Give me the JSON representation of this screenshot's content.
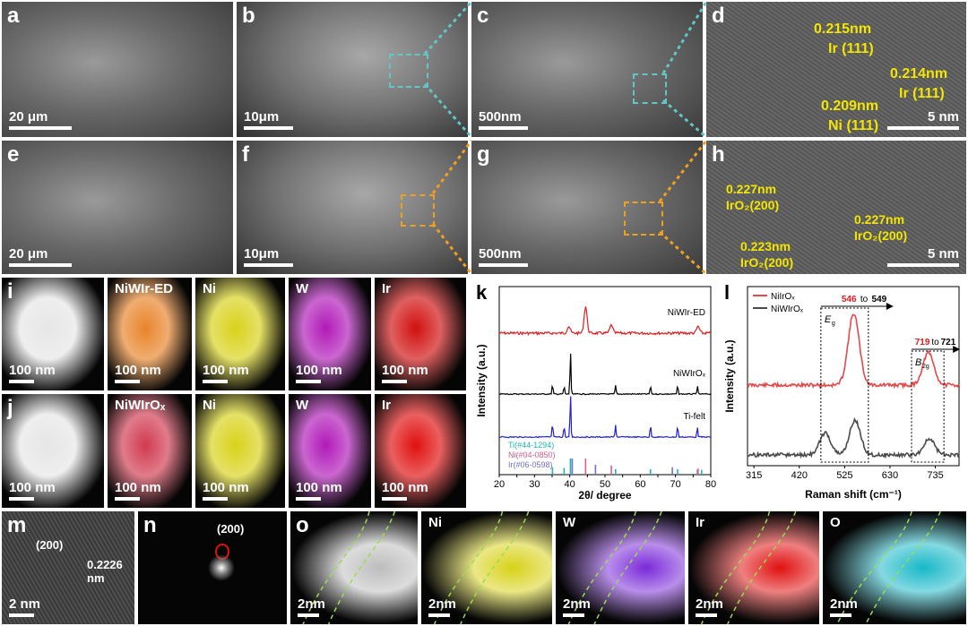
{
  "panels": {
    "a": {
      "letter": "a",
      "scalebar": "20 μm"
    },
    "b": {
      "letter": "b",
      "scalebar": "10μm"
    },
    "c": {
      "letter": "c",
      "scalebar": "500nm"
    },
    "d": {
      "letter": "d",
      "scalebar": "5 nm",
      "annotations": [
        "0.215nm",
        "Ir (111)",
        "0.214nm",
        "Ir (111)",
        "0.209nm",
        "Ni (111)"
      ]
    },
    "e": {
      "letter": "e",
      "scalebar": "20 μm"
    },
    "f": {
      "letter": "f",
      "scalebar": "10μm"
    },
    "g": {
      "letter": "g",
      "scalebar": "500nm"
    },
    "h": {
      "letter": "h",
      "scalebar": "5 nm",
      "annotations": [
        "0.227nm",
        "IrO₂(200)",
        "0.227nm",
        "IrO₂(200)",
        "0.223nm",
        "IrO₂(200)"
      ]
    },
    "i": {
      "letter": "i",
      "tiles": [
        {
          "title": "",
          "scalebar": "100 nm",
          "color": "#e6e6e6"
        },
        {
          "title": "NiWIr-ED",
          "scalebar": "100 nm",
          "color": "#e8842a"
        },
        {
          "title": "Ni",
          "scalebar": "100 nm",
          "color": "#d8d21a"
        },
        {
          "title": "W",
          "scalebar": "100 nm",
          "color": "#b01ab8"
        },
        {
          "title": "Ir",
          "scalebar": "100 nm",
          "color": "#d01010"
        }
      ]
    },
    "j": {
      "letter": "j",
      "tiles": [
        {
          "title": "",
          "scalebar": "100 nm",
          "color": "#e6e6e6"
        },
        {
          "title": "NiWIrOₓ",
          "scalebar": "100 nm",
          "color": "#d03a50"
        },
        {
          "title": "Ni",
          "scalebar": "100 nm",
          "color": "#d8d21a"
        },
        {
          "title": "W",
          "scalebar": "100 nm",
          "color": "#b01ab8"
        },
        {
          "title": "Ir",
          "scalebar": "100 nm",
          "color": "#e01010"
        }
      ]
    },
    "m": {
      "letter": "m",
      "scalebar": "2 nm",
      "plane": "(200)",
      "spacing": "0.2226 nm"
    },
    "n": {
      "letter": "n",
      "plane": "(200)"
    },
    "o": {
      "letter": "o",
      "tiles": [
        {
          "title": "",
          "scalebar": "2nm",
          "color": "#bdbdbd"
        },
        {
          "title": "Ni",
          "scalebar": "2nm",
          "color": "#d8d21a"
        },
        {
          "title": "W",
          "scalebar": "2nm",
          "color": "#7a2ad8"
        },
        {
          "title": "Ir",
          "scalebar": "2nm",
          "color": "#e01010"
        },
        {
          "title": "O",
          "scalebar": "2nm",
          "color": "#18b8c8"
        }
      ]
    }
  },
  "chart_data": [
    {
      "panel": "k",
      "letter": "k",
      "type": "line",
      "xlabel": "2θ/ degree",
      "ylabel": "Intensity (a.u.)",
      "xlim": [
        20,
        80
      ],
      "xticks": [
        20,
        25,
        30,
        35,
        40,
        45,
        50,
        55,
        60,
        65,
        70,
        75,
        80
      ],
      "series": [
        {
          "name": "NiWIr-ED",
          "color": "#e41a1c",
          "peaks": [
            [
              39.7,
              0.25
            ],
            [
              44.5,
              1.0
            ],
            [
              51.8,
              0.3
            ],
            [
              76.4,
              0.25
            ]
          ]
        },
        {
          "name": "NiWIrOₓ",
          "color": "#000000",
          "peaks": [
            [
              35.1,
              0.22
            ],
            [
              38.4,
              0.18
            ],
            [
              40.2,
              1.0
            ],
            [
              53.0,
              0.2
            ],
            [
              62.9,
              0.2
            ],
            [
              70.6,
              0.2
            ],
            [
              76.2,
              0.18
            ]
          ]
        },
        {
          "name": "Ti-felt",
          "color": "#2020d8",
          "peaks": [
            [
              35.1,
              0.32
            ],
            [
              38.4,
              0.26
            ],
            [
              40.2,
              1.0
            ],
            [
              53.0,
              0.28
            ],
            [
              62.9,
              0.28
            ],
            [
              70.6,
              0.26
            ],
            [
              76.2,
              0.24
            ]
          ]
        }
      ],
      "references": [
        {
          "name": "Ti(#44-1294)",
          "color": "#1fb5b5",
          "positions": [
            35.1,
            38.4,
            40.2,
            53.0,
            62.9,
            70.6,
            76.2,
            77.4
          ],
          "heights": [
            0.3,
            0.25,
            1.0,
            0.15,
            0.15,
            0.15,
            0.12,
            0.1
          ]
        },
        {
          "name": "Ni(#04-0850)",
          "color": "#e05a8a",
          "positions": [
            44.5,
            51.8,
            76.4
          ],
          "heights": [
            1.0,
            0.45,
            0.2
          ]
        },
        {
          "name": "Ir(#06-0598)",
          "color": "#7070e0",
          "positions": [
            40.7,
            47.3,
            69.1,
            83.4
          ],
          "heights": [
            1.0,
            0.5,
            0.3,
            0.3
          ]
        }
      ]
    },
    {
      "panel": "l",
      "letter": "l",
      "type": "line",
      "xlabel": "Raman shift (cm⁻¹)",
      "ylabel": "Intensity (a.u.)",
      "xlim": [
        300,
        790
      ],
      "xticks": [
        315,
        420,
        525,
        630,
        735
      ],
      "legend": "top-left",
      "series": [
        {
          "name": "NiIrOₓ",
          "color": "#e8484a",
          "peaks": [
            [
              546,
              1.0
            ],
            [
              719,
              0.45
            ]
          ]
        },
        {
          "name": "NiWIrOₓ",
          "color": "#4a4a4a",
          "peaks": [
            [
              480,
              0.35
            ],
            [
              549,
              0.55
            ],
            [
              721,
              0.25
            ]
          ]
        }
      ],
      "annotations": {
        "shift1_from": "546",
        "shift1_to_word": "to",
        "shift1_to": "549",
        "shift1_from_color": "#e41a1c",
        "band1": "E",
        "band1_sub": "g",
        "band1_range": [
          470,
          580
        ],
        "shift2_from": "719",
        "shift2_to_word": "to",
        "shift2_to": "721",
        "shift2_from_color": "#e41a1c",
        "band2": "B",
        "band2_sub": "2g",
        "band2_range": [
          680,
          755
        ]
      }
    }
  ]
}
